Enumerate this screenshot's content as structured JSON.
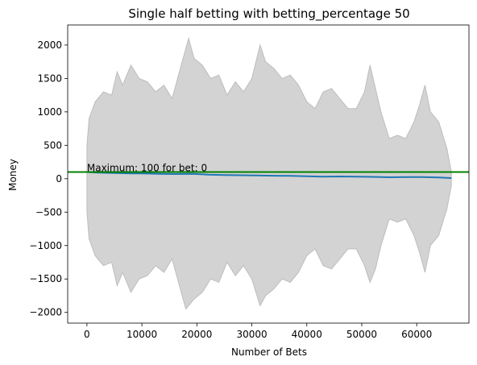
{
  "chart_data": {
    "type": "line",
    "title": "Single half betting with betting_percentage 50",
    "xlabel": "Number of Bets",
    "ylabel": "Money",
    "xlim": [
      -3500,
      69500
    ],
    "ylim": [
      -2160,
      2300
    ],
    "x_ticks": [
      0,
      10000,
      20000,
      30000,
      40000,
      50000,
      60000
    ],
    "y_ticks": [
      -2000,
      -1500,
      -1000,
      -500,
      0,
      500,
      1000,
      1500,
      2000
    ],
    "grid": false,
    "band": {
      "name": "range",
      "color": "#d3d3d3",
      "edge_color": "#bdbdbd",
      "upper": [
        [
          0,
          500
        ],
        [
          400,
          900
        ],
        [
          1500,
          1150
        ],
        [
          3000,
          1300
        ],
        [
          4500,
          1250
        ],
        [
          5500,
          1600
        ],
        [
          6500,
          1400
        ],
        [
          8000,
          1700
        ],
        [
          9500,
          1500
        ],
        [
          11000,
          1450
        ],
        [
          12500,
          1300
        ],
        [
          14000,
          1400
        ],
        [
          15500,
          1200
        ],
        [
          17000,
          1650
        ],
        [
          18000,
          1950
        ],
        [
          18500,
          2100
        ],
        [
          19500,
          1800
        ],
        [
          21000,
          1700
        ],
        [
          22500,
          1500
        ],
        [
          24000,
          1550
        ],
        [
          25500,
          1250
        ],
        [
          27000,
          1450
        ],
        [
          28500,
          1300
        ],
        [
          30000,
          1500
        ],
        [
          31500,
          2000
        ],
        [
          32500,
          1750
        ],
        [
          34000,
          1650
        ],
        [
          35500,
          1500
        ],
        [
          37000,
          1550
        ],
        [
          38500,
          1400
        ],
        [
          40000,
          1150
        ],
        [
          41500,
          1050
        ],
        [
          43000,
          1300
        ],
        [
          44500,
          1350
        ],
        [
          46000,
          1200
        ],
        [
          47500,
          1050
        ],
        [
          49000,
          1050
        ],
        [
          50500,
          1300
        ],
        [
          51500,
          1700
        ],
        [
          52500,
          1350
        ],
        [
          53500,
          1000
        ],
        [
          55000,
          600
        ],
        [
          56500,
          650
        ],
        [
          58000,
          600
        ],
        [
          59500,
          850
        ],
        [
          60500,
          1100
        ],
        [
          61500,
          1400
        ],
        [
          62500,
          1000
        ],
        [
          64000,
          850
        ],
        [
          65500,
          450
        ],
        [
          66300,
          100
        ]
      ],
      "lower": [
        [
          0,
          -500
        ],
        [
          400,
          -900
        ],
        [
          1500,
          -1150
        ],
        [
          3000,
          -1300
        ],
        [
          4500,
          -1250
        ],
        [
          5500,
          -1600
        ],
        [
          6500,
          -1400
        ],
        [
          8000,
          -1700
        ],
        [
          9500,
          -1500
        ],
        [
          11000,
          -1450
        ],
        [
          12500,
          -1300
        ],
        [
          14000,
          -1400
        ],
        [
          15500,
          -1200
        ],
        [
          17000,
          -1650
        ],
        [
          18000,
          -1950
        ],
        [
          18500,
          -1900
        ],
        [
          19500,
          -1800
        ],
        [
          21000,
          -1700
        ],
        [
          22500,
          -1500
        ],
        [
          24000,
          -1550
        ],
        [
          25500,
          -1250
        ],
        [
          27000,
          -1450
        ],
        [
          28500,
          -1300
        ],
        [
          30000,
          -1500
        ],
        [
          31500,
          -1900
        ],
        [
          32500,
          -1750
        ],
        [
          34000,
          -1650
        ],
        [
          35500,
          -1500
        ],
        [
          37000,
          -1550
        ],
        [
          38500,
          -1400
        ],
        [
          40000,
          -1150
        ],
        [
          41500,
          -1050
        ],
        [
          43000,
          -1300
        ],
        [
          44500,
          -1350
        ],
        [
          46000,
          -1200
        ],
        [
          47500,
          -1050
        ],
        [
          49000,
          -1050
        ],
        [
          50500,
          -1300
        ],
        [
          51500,
          -1550
        ],
        [
          52500,
          -1350
        ],
        [
          53500,
          -1000
        ],
        [
          55000,
          -600
        ],
        [
          56500,
          -650
        ],
        [
          58000,
          -600
        ],
        [
          59500,
          -850
        ],
        [
          60500,
          -1100
        ],
        [
          61500,
          -1400
        ],
        [
          62500,
          -1000
        ],
        [
          64000,
          -850
        ],
        [
          65500,
          -450
        ],
        [
          66300,
          -100
        ]
      ]
    },
    "series": [
      {
        "color": "#1f77b4",
        "x": [
          0,
          2000,
          5000,
          8000,
          10000,
          13000,
          16000,
          19000,
          22000,
          25000,
          28000,
          31000,
          34000,
          37000,
          40000,
          43000,
          46000,
          49000,
          52000,
          55000,
          58000,
          61000,
          64000,
          66300
        ],
        "y": [
          100,
          92,
          85,
          80,
          78,
          72,
          70,
          74,
          62,
          55,
          52,
          50,
          45,
          42,
          38,
          30,
          34,
          32,
          28,
          22,
          25,
          24,
          18,
          10
        ]
      }
    ],
    "hline": {
      "y": 100,
      "color": "#008000"
    },
    "annotation": {
      "text": "Maximum: 100 for bet: 0",
      "x": 0,
      "y": 100
    }
  }
}
